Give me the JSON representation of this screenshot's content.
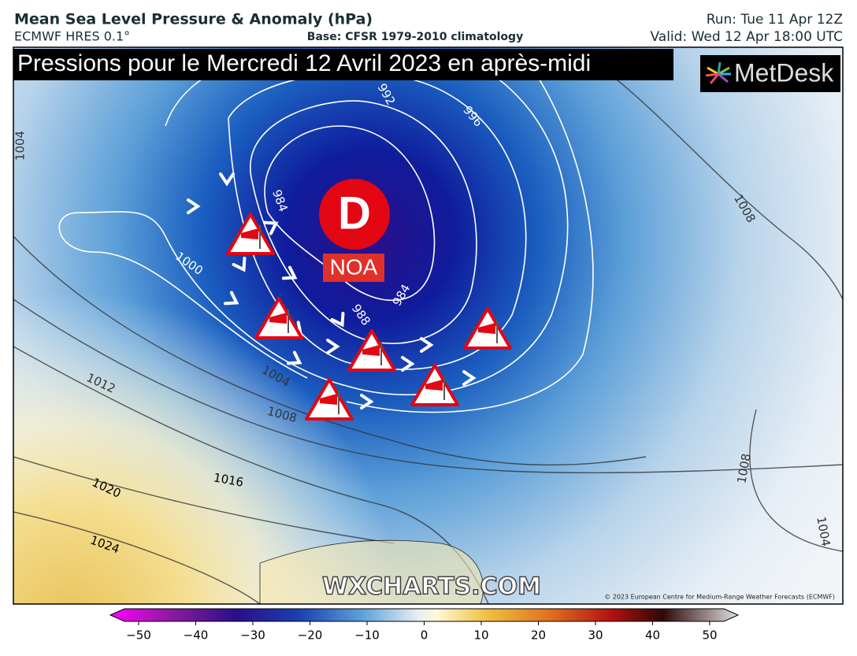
{
  "header": {
    "title": "Mean Sea Level Pressure & Anomaly (hPa)",
    "model": "ECMWF HRES 0.1°",
    "base": "Base: CFSR 1979-2010 climatology",
    "run": "Run: Tue 11 Apr 12Z",
    "valid": "Valid: Wed 12 Apr 18:00 UTC"
  },
  "map": {
    "banner": "Pressions pour le Mercredi 12 Avril 2023 en après-midi",
    "logo": "MetDesk",
    "low_symbol": "D",
    "low_name": "NOA",
    "isobar_labels": [
      "1004",
      "992",
      "996",
      "984",
      "984",
      "1000",
      "988",
      "1004",
      "1008",
      "1012",
      "1008",
      "1016",
      "1020",
      "1024",
      "1008",
      "1004"
    ],
    "watermark": "WXCHARTS.COM",
    "copyright": "© 2023 European Centre for Medium-Range Weather Forecasts (ECMWF)"
  },
  "colorbar": {
    "ticks": [
      {
        "value": -50,
        "label": "−50"
      },
      {
        "value": -40,
        "label": "−40"
      },
      {
        "value": -30,
        "label": "−30"
      },
      {
        "value": -20,
        "label": "−20"
      },
      {
        "value": -10,
        "label": "−10"
      },
      0,
      10,
      20,
      30,
      40,
      50
    ]
  }
}
